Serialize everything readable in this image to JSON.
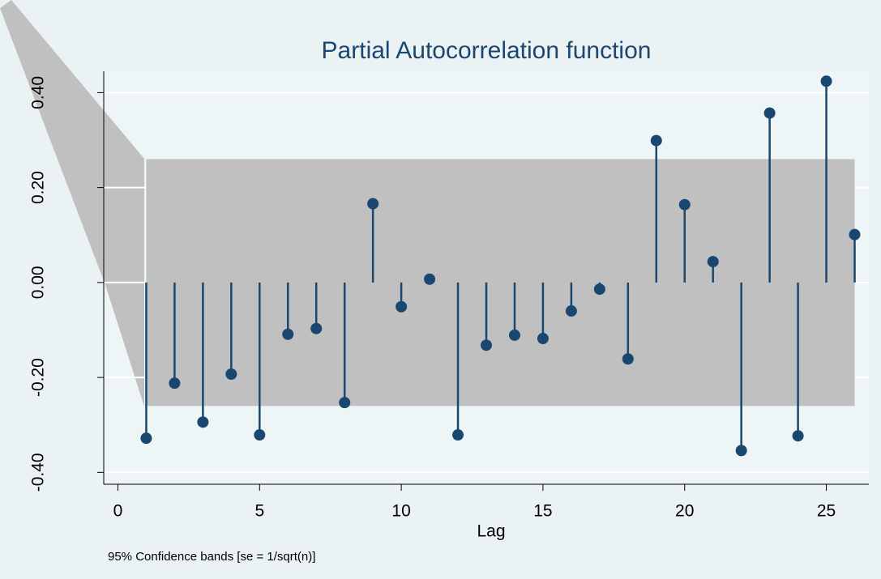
{
  "chart_data": {
    "type": "stem",
    "title": "Partial Autocorrelation function",
    "xlabel": "Lag",
    "note": "95% Confidence bands [se = 1/sqrt(n)]",
    "x": [
      1,
      2,
      3,
      4,
      5,
      6,
      7,
      8,
      9,
      10,
      11,
      12,
      13,
      14,
      15,
      16,
      17,
      18,
      19,
      20,
      21,
      22,
      23,
      24,
      25,
      26
    ],
    "values": [
      -0.328,
      -0.212,
      -0.294,
      -0.193,
      -0.321,
      -0.109,
      -0.097,
      -0.253,
      0.166,
      -0.051,
      0.007,
      -0.321,
      -0.132,
      -0.111,
      -0.118,
      -0.06,
      -0.014,
      -0.161,
      0.299,
      0.164,
      0.044,
      -0.354,
      0.357,
      -0.323,
      0.424,
      0.101
    ],
    "color": "#1a476f",
    "band": {
      "color": "#c0c0c0",
      "upper": [
        0.26,
        0.26,
        0.26,
        0.26,
        0.26,
        0.26,
        0.26,
        0.26,
        0.26,
        0.26,
        0.26,
        0.26,
        0.26,
        0.26,
        0.26,
        0.26,
        0.26,
        0.26,
        0.26,
        0.26,
        0.26,
        0.26,
        0.26,
        0.26,
        0.26,
        0.26
      ],
      "lower": [
        -0.26,
        -0.26,
        -0.26,
        -0.26,
        -0.26,
        -0.26,
        -0.26,
        -0.26,
        -0.26,
        -0.26,
        -0.26,
        -0.26,
        -0.26,
        -0.26,
        -0.26,
        -0.26,
        -0.26,
        -0.26,
        -0.26,
        -0.26,
        -0.26,
        -0.26,
        -0.26,
        -0.26,
        -0.26,
        -0.26
      ]
    },
    "xlim": [
      -0.5,
      26.5
    ],
    "xticks": [
      0,
      5,
      10,
      15,
      20,
      25
    ],
    "ylim": [
      -0.425,
      0.445
    ],
    "yticks": [
      {
        "value": -0.4,
        "label": "-0.40"
      },
      {
        "value": -0.2,
        "label": "-0.20"
      },
      {
        "value": 0,
        "label": "0.00"
      },
      {
        "value": 0.2,
        "label": "0.20"
      },
      {
        "value": 0.4,
        "label": "0.40"
      }
    ],
    "grid": true
  }
}
